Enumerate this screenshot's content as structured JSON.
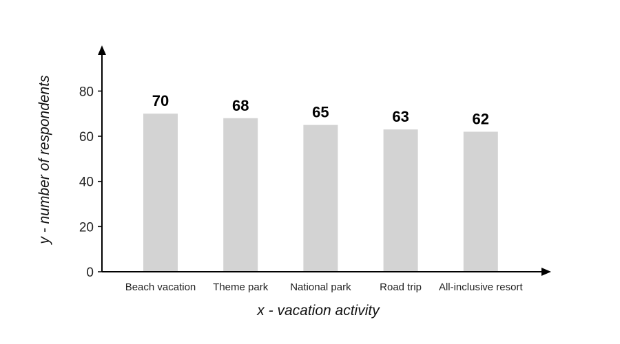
{
  "chart_data": {
    "type": "bar",
    "categories": [
      "Beach vacation",
      "Theme park",
      "National park",
      "Road trip",
      "All-inclusive resort"
    ],
    "values": [
      70,
      68,
      65,
      63,
      62
    ],
    "data_labels": [
      "70",
      "68",
      "65",
      "63",
      "62"
    ],
    "title": "",
    "xlabel": "x - vacation activity",
    "ylabel": "y - number of respondents",
    "ylim": [
      0,
      95
    ],
    "yticks": [
      0,
      20,
      40,
      60,
      80
    ],
    "grid": false,
    "legend": "none",
    "bar_color": "#d3d3d3",
    "axis_color": "#000000"
  }
}
